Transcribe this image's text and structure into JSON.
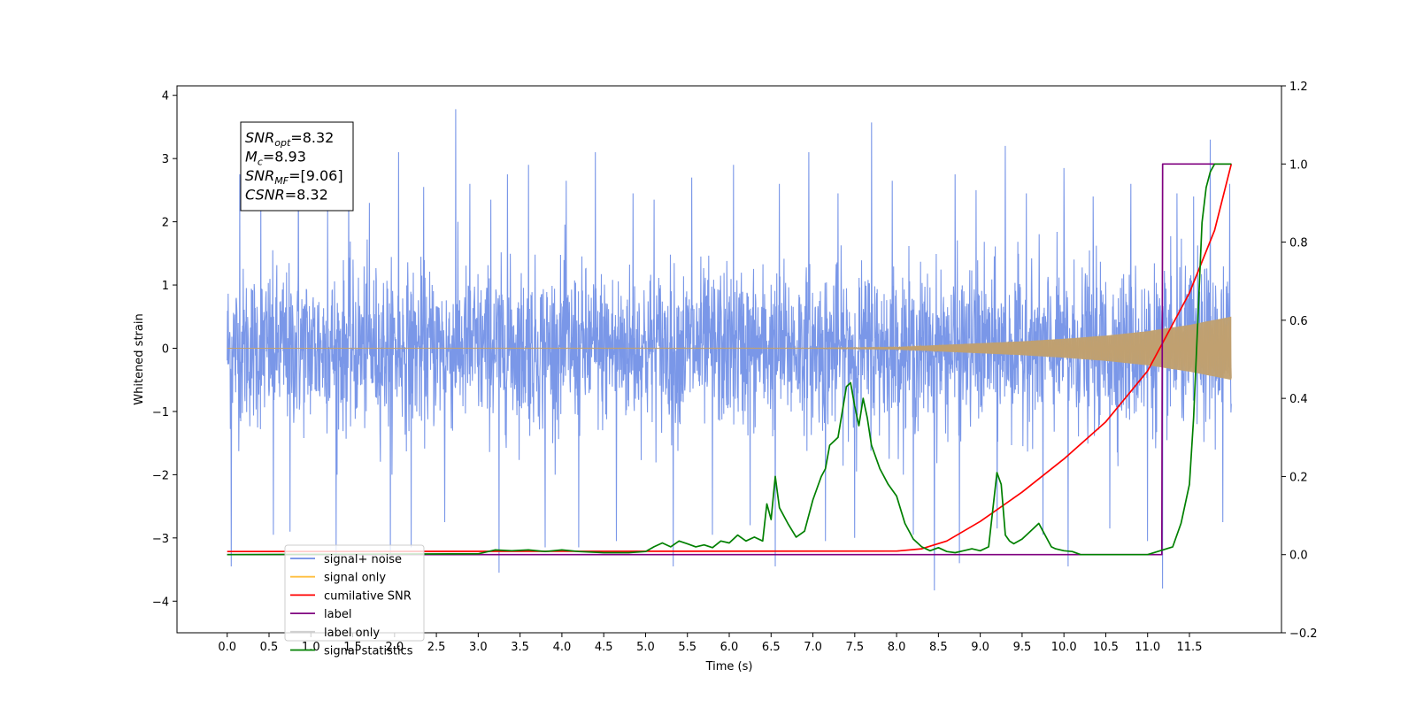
{
  "chart_data": {
    "type": "line",
    "xlabel": "Time (s)",
    "ylabel": "Whitened strain",
    "xlim": [
      -0.6,
      12.6
    ],
    "ylim": [
      -4.5,
      4.15
    ],
    "y2lim": [
      -0.2,
      1.2
    ],
    "x_ticks": [
      "0.0",
      "0.5",
      "1.0",
      "1.5",
      "2.0",
      "2.5",
      "3.0",
      "3.5",
      "4.0",
      "4.5",
      "5.0",
      "5.5",
      "6.0",
      "6.5",
      "7.0",
      "7.5",
      "8.0",
      "8.5",
      "9.0",
      "9.5",
      "10.0",
      "10.5",
      "11.0",
      "11.5"
    ],
    "y_ticks": [
      "−4",
      "−3",
      "−2",
      "−1",
      "0",
      "1",
      "2",
      "3",
      "4"
    ],
    "y2_ticks": [
      "−0.2",
      "0.0",
      "0.2",
      "0.4",
      "0.6",
      "0.8",
      "1.0",
      "1.2"
    ],
    "legend_position": "lower-left",
    "annotation": {
      "lines": [
        {
          "base": "SNR",
          "sub": "opt",
          "rest": "=8.32"
        },
        {
          "base": "M",
          "sub": "c",
          "rest": "=8.93"
        },
        {
          "base": "SNR",
          "sub": "MF",
          "rest": "=[9.06]"
        },
        {
          "base": "CSNR",
          "sub": "",
          "rest": "=8.32"
        }
      ]
    },
    "series": [
      {
        "name": "signal+ noise",
        "color": "#6b8ce6",
        "axis": "left",
        "x_range": [
          0.0,
          12.0
        ],
        "envelope_typical": 1.3,
        "spikes": [
          {
            "x": 0.05,
            "y": -3.45
          },
          {
            "x": 0.15,
            "y": 2.75
          },
          {
            "x": 0.4,
            "y": 2.45
          },
          {
            "x": 0.55,
            "y": -2.95
          },
          {
            "x": 0.75,
            "y": -2.9
          },
          {
            "x": 0.85,
            "y": 2.9
          },
          {
            "x": 1.2,
            "y": 2.3
          },
          {
            "x": 1.3,
            "y": -3.25
          },
          {
            "x": 1.45,
            "y": 2.5
          },
          {
            "x": 1.7,
            "y": 2.3
          },
          {
            "x": 1.95,
            "y": -3.25
          },
          {
            "x": 2.05,
            "y": 3.1
          },
          {
            "x": 2.2,
            "y": -3.15
          },
          {
            "x": 2.35,
            "y": 2.55
          },
          {
            "x": 2.6,
            "y": -2.75
          },
          {
            "x": 2.73,
            "y": 3.78
          },
          {
            "x": 2.9,
            "y": 2.6
          },
          {
            "x": 3.15,
            "y": 2.35
          },
          {
            "x": 3.25,
            "y": -3.55
          },
          {
            "x": 3.35,
            "y": 2.75
          },
          {
            "x": 3.6,
            "y": 2.9
          },
          {
            "x": 3.8,
            "y": -3.15
          },
          {
            "x": 4.05,
            "y": 2.65
          },
          {
            "x": 4.2,
            "y": -3.15
          },
          {
            "x": 4.4,
            "y": 3.1
          },
          {
            "x": 4.65,
            "y": -3.05
          },
          {
            "x": 4.85,
            "y": 2.45
          },
          {
            "x": 5.1,
            "y": 2.35
          },
          {
            "x": 5.33,
            "y": -3.45
          },
          {
            "x": 5.55,
            "y": 2.7
          },
          {
            "x": 5.8,
            "y": -2.95
          },
          {
            "x": 6.05,
            "y": 2.9
          },
          {
            "x": 6.25,
            "y": -2.8
          },
          {
            "x": 6.55,
            "y": -3.45
          },
          {
            "x": 6.6,
            "y": 2.6
          },
          {
            "x": 6.95,
            "y": 3.1
          },
          {
            "x": 7.15,
            "y": -3.05
          },
          {
            "x": 7.3,
            "y": 2.45
          },
          {
            "x": 7.5,
            "y": -3.0
          },
          {
            "x": 7.7,
            "y": 3.57
          },
          {
            "x": 7.95,
            "y": 2.65
          },
          {
            "x": 8.2,
            "y": -2.95
          },
          {
            "x": 8.45,
            "y": -3.83
          },
          {
            "x": 8.7,
            "y": 2.75
          },
          {
            "x": 8.75,
            "y": -3.4
          },
          {
            "x": 8.95,
            "y": 2.5
          },
          {
            "x": 9.2,
            "y": -2.85
          },
          {
            "x": 9.3,
            "y": 3.2
          },
          {
            "x": 9.55,
            "y": 2.45
          },
          {
            "x": 9.75,
            "y": -2.95
          },
          {
            "x": 10.0,
            "y": 2.85
          },
          {
            "x": 10.05,
            "y": -3.45
          },
          {
            "x": 10.35,
            "y": 2.4
          },
          {
            "x": 10.55,
            "y": -2.85
          },
          {
            "x": 10.8,
            "y": 2.6
          },
          {
            "x": 11.0,
            "y": -3.05
          },
          {
            "x": 11.18,
            "y": -3.8
          },
          {
            "x": 11.35,
            "y": 2.45
          },
          {
            "x": 11.55,
            "y": 2.4
          },
          {
            "x": 11.75,
            "y": 3.3
          },
          {
            "x": 11.9,
            "y": -2.75
          },
          {
            "x": 11.98,
            "y": 2.6
          }
        ]
      },
      {
        "name": "signal only",
        "color": "#ffbf40",
        "fill_color": "#c0a070",
        "axis": "left",
        "x_range": [
          0.0,
          12.0
        ],
        "amplitude_envelope": [
          {
            "x": 0.0,
            "y": 0.0
          },
          {
            "x": 7.0,
            "y": 0.005
          },
          {
            "x": 8.0,
            "y": 0.02
          },
          {
            "x": 8.5,
            "y": 0.05
          },
          {
            "x": 9.0,
            "y": 0.08
          },
          {
            "x": 9.5,
            "y": 0.11
          },
          {
            "x": 10.0,
            "y": 0.15
          },
          {
            "x": 10.5,
            "y": 0.2
          },
          {
            "x": 11.0,
            "y": 0.27
          },
          {
            "x": 11.5,
            "y": 0.37
          },
          {
            "x": 12.0,
            "y": 0.5
          }
        ]
      },
      {
        "name": "cumilative SNR",
        "color": "#ff0000",
        "axis": "right",
        "x": [
          0.0,
          8.0,
          8.3,
          8.6,
          9.0,
          9.5,
          10.0,
          10.5,
          11.0,
          11.5,
          11.8,
          12.0
        ],
        "values": [
          0.008,
          0.009,
          0.015,
          0.035,
          0.085,
          0.16,
          0.245,
          0.34,
          0.47,
          0.67,
          0.83,
          1.0
        ]
      },
      {
        "name": "label",
        "color": "#800080",
        "axis": "right",
        "x": [
          0.0,
          11.17,
          11.18,
          12.0
        ],
        "values": [
          0.0,
          0.0,
          1.0,
          1.0
        ]
      },
      {
        "name": "label only",
        "color": "#d0d0d0",
        "axis": "right",
        "x": [],
        "values": []
      },
      {
        "name": "signal statistics",
        "color": "#008000",
        "axis": "right",
        "x": [
          0.0,
          3.0,
          3.2,
          3.4,
          3.6,
          3.8,
          4.0,
          4.2,
          4.5,
          4.8,
          5.0,
          5.1,
          5.2,
          5.3,
          5.4,
          5.5,
          5.6,
          5.7,
          5.8,
          5.9,
          6.0,
          6.1,
          6.2,
          6.3,
          6.4,
          6.45,
          6.5,
          6.55,
          6.6,
          6.7,
          6.8,
          6.9,
          7.0,
          7.1,
          7.15,
          7.2,
          7.3,
          7.4,
          7.45,
          7.5,
          7.55,
          7.6,
          7.65,
          7.7,
          7.75,
          7.8,
          7.9,
          8.0,
          8.1,
          8.2,
          8.3,
          8.4,
          8.5,
          8.6,
          8.7,
          8.8,
          8.9,
          9.0,
          9.1,
          9.2,
          9.25,
          9.3,
          9.35,
          9.4,
          9.5,
          9.6,
          9.7,
          9.75,
          9.8,
          9.85,
          9.9,
          10.0,
          10.1,
          10.2,
          10.5,
          11.0,
          11.3,
          11.4,
          11.5,
          11.55,
          11.6,
          11.65,
          11.7,
          11.75,
          11.8,
          11.85,
          11.9,
          12.0
        ],
        "values": [
          0.0,
          0.002,
          0.012,
          0.01,
          0.012,
          0.008,
          0.012,
          0.008,
          0.005,
          0.005,
          0.008,
          0.02,
          0.03,
          0.02,
          0.035,
          0.028,
          0.02,
          0.025,
          0.018,
          0.035,
          0.03,
          0.05,
          0.035,
          0.045,
          0.035,
          0.13,
          0.09,
          0.2,
          0.12,
          0.08,
          0.045,
          0.06,
          0.14,
          0.2,
          0.22,
          0.28,
          0.3,
          0.43,
          0.44,
          0.38,
          0.33,
          0.4,
          0.35,
          0.28,
          0.25,
          0.22,
          0.18,
          0.15,
          0.08,
          0.04,
          0.02,
          0.01,
          0.018,
          0.008,
          0.005,
          0.01,
          0.015,
          0.01,
          0.02,
          0.21,
          0.18,
          0.05,
          0.035,
          0.028,
          0.04,
          0.06,
          0.08,
          0.06,
          0.04,
          0.02,
          0.015,
          0.01,
          0.008,
          0.0,
          0.0,
          0.0,
          0.02,
          0.08,
          0.18,
          0.35,
          0.6,
          0.85,
          0.94,
          0.98,
          1.0,
          1.0,
          1.0,
          1.0
        ]
      }
    ]
  }
}
